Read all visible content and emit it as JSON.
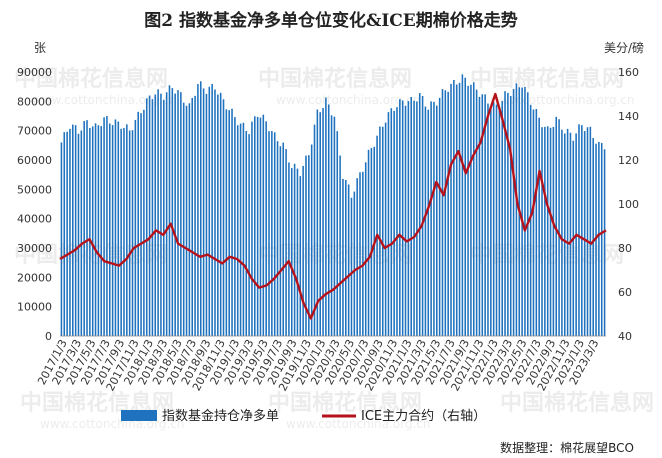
{
  "title": "图2  指数基金净多单仓位变化&ICE期棉价格走势",
  "left_unit": "张",
  "right_unit": "美分/磅",
  "legend": {
    "bar": "指数基金持仓净多单",
    "line": "ICE主力合约（右轴）"
  },
  "credit": "数据整理：棉花展望BCO",
  "watermark": {
    "brand": "中国棉花信息网",
    "url": "www.cottonchina.org.cn"
  },
  "colors": {
    "bar": "#1f72be",
    "line": "#b5121b"
  },
  "chart_data": {
    "type": "bar+line",
    "y_left": {
      "min": 0,
      "max": 90000,
      "ticks": [
        0,
        10000,
        20000,
        30000,
        40000,
        50000,
        60000,
        70000,
        80000,
        90000
      ]
    },
    "y_right": {
      "min": 40,
      "max": 160,
      "ticks": [
        40,
        60,
        80,
        100,
        120,
        140,
        160
      ]
    },
    "x_labels": [
      "2017/1/3",
      "2017/3/3",
      "2017/5/3",
      "2017/7/3",
      "2017/9/3",
      "2017/11/3",
      "2018/1/3",
      "2018/3/3",
      "2018/5/3",
      "2018/7/3",
      "2018/9/3",
      "2018/11/3",
      "2019/1/3",
      "2019/3/3",
      "2019/5/3",
      "2019/7/3",
      "2019/9/3",
      "2019/11/3",
      "2020/1/3",
      "2020/3/3",
      "2020/5/3",
      "2020/7/3",
      "2020/9/3",
      "2020/11/3",
      "2021/1/3",
      "2021/3/3",
      "2021/5/3",
      "2021/7/3",
      "2021/9/3",
      "2021/11/3",
      "2022/1/3",
      "2022/3/3",
      "2022/5/3",
      "2022/7/3",
      "2022/9/3",
      "2022/11/3",
      "2023/1/3",
      "2023/3/3"
    ],
    "series": [
      {
        "name": "指数基金持仓净多单",
        "axis": "left",
        "kind": "bar",
        "interval": "monthly",
        "values": [
          66000,
          72000,
          70000,
          73000,
          71000,
          74000,
          73000,
          72000,
          70000,
          75000,
          80000,
          83000,
          82000,
          85000,
          82000,
          78000,
          86000,
          84000,
          85000,
          80000,
          76000,
          72000,
          70000,
          76000,
          73000,
          68000,
          65000,
          58000,
          56000,
          62000,
          76000,
          80000,
          75000,
          55000,
          48000,
          55000,
          62000,
          68000,
          74000,
          78000,
          80000,
          80000,
          82000,
          78000,
          80000,
          84000,
          86000,
          88000,
          86000,
          83000,
          80000,
          78000,
          82000,
          84000,
          86000,
          80000,
          74000,
          70000,
          74000,
          70000,
          68000,
          72000,
          70000,
          65000
        ]
      },
      {
        "name": "ICE主力合约（右轴）",
        "axis": "right",
        "kind": "line",
        "interval": "monthly",
        "values": [
          75,
          77,
          79,
          82,
          84,
          78,
          74,
          73,
          72,
          75,
          80,
          82,
          84,
          88,
          86,
          91,
          82,
          80,
          78,
          76,
          77,
          75,
          73,
          76,
          75,
          72,
          66,
          62,
          63,
          66,
          70,
          74,
          66,
          55,
          48,
          56,
          59,
          61,
          64,
          67,
          70,
          72,
          76,
          86,
          80,
          82,
          86,
          83,
          85,
          90,
          99,
          110,
          104,
          118,
          124,
          114,
          122,
          128,
          140,
          150,
          138,
          125,
          100,
          88,
          96,
          115,
          100,
          90,
          84,
          82,
          86,
          84,
          82,
          86,
          88
        ]
      }
    ],
    "grid": false,
    "legend_position": "bottom"
  }
}
